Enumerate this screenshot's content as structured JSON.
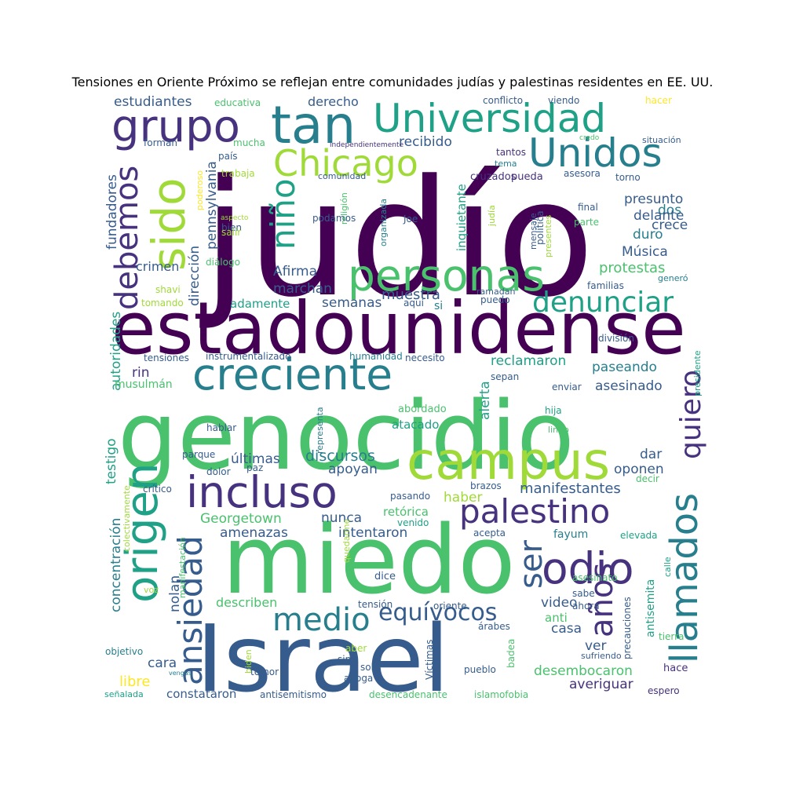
{
  "title": "Tensiones en Oriente Próximo se reflejan entre comunidades judías y palestinas residentes en EE. UU.",
  "palette": {
    "p1": "#440154",
    "p2": "#46327e",
    "p3": "#365c8d",
    "p4": "#277f8e",
    "p5": "#1fa187",
    "p6": "#4ac16d",
    "p7": "#a0da39",
    "p8": "#fde725"
  },
  "words": [
    {
      "t": "judío",
      "c": "p1"
    },
    {
      "t": "estadounidense",
      "c": "p1"
    },
    {
      "t": "genocidio",
      "c": "p6"
    },
    {
      "t": "miedo",
      "c": "p6"
    },
    {
      "t": "Israel",
      "c": "p3"
    },
    {
      "t": "Universidad",
      "c": "p5"
    },
    {
      "t": "tan",
      "c": "p4"
    },
    {
      "t": "grupo",
      "c": "p2"
    },
    {
      "t": "Unidos",
      "c": "p4"
    },
    {
      "t": "Chicago",
      "c": "p7"
    },
    {
      "t": "sido",
      "c": "p7"
    },
    {
      "t": "debemos",
      "c": "p2"
    },
    {
      "t": "niño",
      "c": "p5"
    },
    {
      "t": "personas",
      "c": "p6"
    },
    {
      "t": "denunciar",
      "c": "p5"
    },
    {
      "t": "creciente",
      "c": "p4"
    },
    {
      "t": "campus",
      "c": "p7"
    },
    {
      "t": "incluso",
      "c": "p2"
    },
    {
      "t": "palestino",
      "c": "p2"
    },
    {
      "t": "origen",
      "c": "p5"
    },
    {
      "t": "ansiedad",
      "c": "p3"
    },
    {
      "t": "llamados",
      "c": "p4"
    },
    {
      "t": "odio",
      "c": "p2"
    },
    {
      "t": "ser",
      "c": "p3"
    },
    {
      "t": "medio",
      "c": "p4"
    },
    {
      "t": "años",
      "c": "p2"
    },
    {
      "t": "equívocos",
      "c": "p3"
    },
    {
      "t": "quiero",
      "c": "p2"
    },
    {
      "t": "estudiantes",
      "c": "p3"
    },
    {
      "t": "educativa",
      "c": "p6"
    },
    {
      "t": "derecho",
      "c": "p3"
    },
    {
      "t": "conflicto",
      "c": "p3"
    },
    {
      "t": "viendo",
      "c": "p3"
    },
    {
      "t": "hacer",
      "c": "p8"
    },
    {
      "t": "credo",
      "c": "p6"
    },
    {
      "t": "situación",
      "c": "p3"
    },
    {
      "t": "forman",
      "c": "p3"
    },
    {
      "t": "mucha",
      "c": "p6"
    },
    {
      "t": "independientemente",
      "c": "p2"
    },
    {
      "t": "tantos",
      "c": "p2"
    },
    {
      "t": "tema",
      "c": "p4"
    },
    {
      "t": "recibido",
      "c": "p3"
    },
    {
      "t": "fundadores",
      "c": "p3"
    },
    {
      "t": "país",
      "c": "p3"
    },
    {
      "t": "trabaja",
      "c": "p7"
    },
    {
      "t": "poderoso",
      "c": "p8"
    },
    {
      "t": "pennsylvania",
      "c": "p3"
    },
    {
      "t": "comunidad",
      "c": "p3"
    },
    {
      "t": "religión",
      "c": "p6"
    },
    {
      "t": "inquietante",
      "c": "p5"
    },
    {
      "t": "cruzados",
      "c": "p2"
    },
    {
      "t": "pueda",
      "c": "p2"
    },
    {
      "t": "asesora",
      "c": "p3"
    },
    {
      "t": "torno",
      "c": "p3"
    },
    {
      "t": "presunto",
      "c": "p3"
    },
    {
      "t": "dos",
      "c": "p4"
    },
    {
      "t": "delante",
      "c": "p3"
    },
    {
      "t": "crece",
      "c": "p3"
    },
    {
      "t": "duro",
      "c": "p4"
    },
    {
      "t": "Música",
      "c": "p3"
    },
    {
      "t": "final",
      "c": "p3"
    },
    {
      "t": "parte",
      "c": "p6"
    },
    {
      "t": "política",
      "c": "p3"
    },
    {
      "t": "mensaje",
      "c": "p3"
    },
    {
      "t": "presentes",
      "c": "p7"
    },
    {
      "t": "judía",
      "c": "p7"
    },
    {
      "t": "organizada",
      "c": "p4"
    },
    {
      "t": "Joe",
      "c": "p3"
    },
    {
      "t": "podamos",
      "c": "p3"
    },
    {
      "t": "aspecto",
      "c": "p7"
    },
    {
      "t": "bien",
      "c": "p3"
    },
    {
      "t": "salir",
      "c": "p7"
    },
    {
      "t": "dirección",
      "c": "p3"
    },
    {
      "t": "diálogo",
      "c": "p6"
    },
    {
      "t": "crimen",
      "c": "p3"
    },
    {
      "t": "Afirma",
      "c": "p3"
    },
    {
      "t": "protestas",
      "c": "p6"
    },
    {
      "t": "familias",
      "c": "p3"
    },
    {
      "t": "generó",
      "c": "p4"
    },
    {
      "t": "marchan",
      "c": "p3"
    },
    {
      "t": "muestra",
      "c": "p3"
    },
    {
      "t": "ramadan",
      "c": "p3"
    },
    {
      "t": "puedo",
      "c": "p3"
    },
    {
      "t": "shavi",
      "c": "p7"
    },
    {
      "t": "tomando",
      "c": "p7"
    },
    {
      "t": "adamente",
      "c": "p5"
    },
    {
      "t": "semanas",
      "c": "p3"
    },
    {
      "t": "aquí",
      "c": "p3"
    },
    {
      "t": "si",
      "c": "p4"
    },
    {
      "t": "autoridades",
      "c": "p5"
    },
    {
      "t": "tensiones",
      "c": "p3"
    },
    {
      "t": "instrumentalizado",
      "c": "p3"
    },
    {
      "t": "humanidad",
      "c": "p4"
    },
    {
      "t": "necesito",
      "c": "p3"
    },
    {
      "t": "división",
      "c": "p3"
    },
    {
      "t": "rin",
      "c": "p2"
    },
    {
      "t": "musulmán",
      "c": "p6"
    },
    {
      "t": "reclamaron",
      "c": "p5"
    },
    {
      "t": "paseando",
      "c": "p4"
    },
    {
      "t": "presidente",
      "c": "p5"
    },
    {
      "t": "sepan",
      "c": "p3"
    },
    {
      "t": "enviar",
      "c": "p3"
    },
    {
      "t": "asesinado",
      "c": "p3"
    },
    {
      "t": "testigo",
      "c": "p5"
    },
    {
      "t": "abordado",
      "c": "p6"
    },
    {
      "t": "alerta",
      "c": "p5"
    },
    {
      "t": "hija",
      "c": "p5"
    },
    {
      "t": "atacado",
      "c": "p5"
    },
    {
      "t": "lindo",
      "c": "p6"
    },
    {
      "t": "representa",
      "c": "p4"
    },
    {
      "t": "hablar",
      "c": "p3"
    },
    {
      "t": "parque",
      "c": "p3"
    },
    {
      "t": "últimas",
      "c": "p3"
    },
    {
      "t": "discursos",
      "c": "p4"
    },
    {
      "t": "dar",
      "c": "p3"
    },
    {
      "t": "oponen",
      "c": "p3"
    },
    {
      "t": "dolor",
      "c": "p3"
    },
    {
      "t": "paz",
      "c": "p3"
    },
    {
      "t": "apoyan",
      "c": "p3"
    },
    {
      "t": "decir",
      "c": "p6"
    },
    {
      "t": "crítico",
      "c": "p3"
    },
    {
      "t": "colectivamente",
      "c": "p7"
    },
    {
      "t": "brazos",
      "c": "p3"
    },
    {
      "t": "manifestantes",
      "c": "p3"
    },
    {
      "t": "haber",
      "c": "p7"
    },
    {
      "t": "pasando",
      "c": "p3"
    },
    {
      "t": "concentración",
      "c": "p4"
    },
    {
      "t": "Georgetown",
      "c": "p6"
    },
    {
      "t": "nunca",
      "c": "p3"
    },
    {
      "t": "retórica",
      "c": "p6"
    },
    {
      "t": "venido",
      "c": "p5"
    },
    {
      "t": "amenazas",
      "c": "p3"
    },
    {
      "t": "intentaron",
      "c": "p3"
    },
    {
      "t": "fayum",
      "c": "p4"
    },
    {
      "t": "acepta",
      "c": "p3"
    },
    {
      "t": "elevada",
      "c": "p5"
    },
    {
      "t": "manifestación",
      "c": "p6"
    },
    {
      "t": "quedarme",
      "c": "p7"
    },
    {
      "t": "calle",
      "c": "p5"
    },
    {
      "t": "nolan",
      "c": "p3"
    },
    {
      "t": "dice",
      "c": "p3"
    },
    {
      "t": "asesinato",
      "c": "p6"
    },
    {
      "t": "voz",
      "c": "p7"
    },
    {
      "t": "describen",
      "c": "p6"
    },
    {
      "t": "tensión",
      "c": "p3"
    },
    {
      "t": "oriente",
      "c": "p3"
    },
    {
      "t": "video",
      "c": "p3"
    },
    {
      "t": "sabe",
      "c": "p3"
    },
    {
      "t": "ahora",
      "c": "p3"
    },
    {
      "t": "antisemita",
      "c": "p5"
    },
    {
      "t": "anti",
      "c": "p6"
    },
    {
      "t": "casa",
      "c": "p3"
    },
    {
      "t": "árabes",
      "c": "p3"
    },
    {
      "t": "precauciones",
      "c": "p3"
    },
    {
      "t": "tierra",
      "c": "p6"
    },
    {
      "t": "ver",
      "c": "p3"
    },
    {
      "t": "objetivo",
      "c": "p4"
    },
    {
      "t": "aber",
      "c": "p7"
    },
    {
      "t": "sino",
      "c": "p3"
    },
    {
      "t": "solo",
      "c": "p3"
    },
    {
      "t": "cara",
      "c": "p3"
    },
    {
      "t": "sufriendo",
      "c": "p3"
    },
    {
      "t": "badea",
      "c": "p6"
    },
    {
      "t": "desembocaron",
      "c": "p6"
    },
    {
      "t": "hace",
      "c": "p2"
    },
    {
      "t": "libre",
      "c": "p8"
    },
    {
      "t": "vengas",
      "c": "p4"
    },
    {
      "t": "biden",
      "c": "p7"
    },
    {
      "t": "temor",
      "c": "p3"
    },
    {
      "t": "aboga",
      "c": "p3"
    },
    {
      "t": "Víctimas",
      "c": "p3"
    },
    {
      "t": "pueblo",
      "c": "p3"
    },
    {
      "t": "averiguar",
      "c": "p2"
    },
    {
      "t": "señalada",
      "c": "p5"
    },
    {
      "t": "constataron",
      "c": "p3"
    },
    {
      "t": "antisemitismo",
      "c": "p3"
    },
    {
      "t": "desencadenante",
      "c": "p6"
    },
    {
      "t": "islamofobia",
      "c": "p6"
    },
    {
      "t": "espero",
      "c": "p2"
    }
  ]
}
